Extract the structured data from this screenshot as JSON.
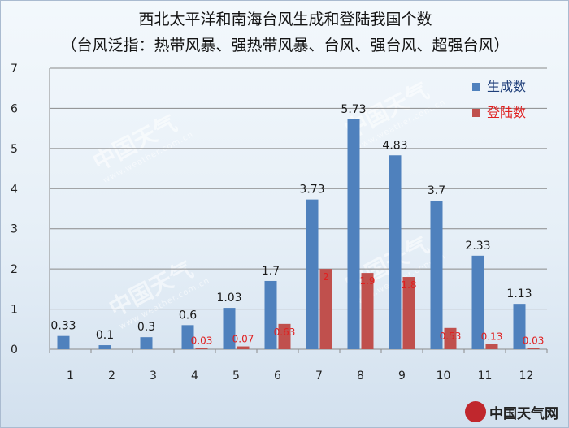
{
  "chart_data": {
    "type": "bar",
    "title_line1": "西北太平洋和南海台风生成和登陆我国个数",
    "title_line2": "（台风泛指：热带风暴、强热带风暴、台风、强台风、超强台风）",
    "categories": [
      "1",
      "2",
      "3",
      "4",
      "5",
      "6",
      "7",
      "8",
      "9",
      "10",
      "11",
      "12"
    ],
    "series": [
      {
        "name": "生成数",
        "color": "#4f81bd",
        "values": [
          0.33,
          0.1,
          0.3,
          0.6,
          1.03,
          1.7,
          3.73,
          5.73,
          4.83,
          3.7,
          2.33,
          1.13
        ],
        "labels": [
          "0.33",
          "0.1",
          "0.3",
          "0.6",
          "1.03",
          "1.7",
          "3.73",
          "5.73",
          "4.83",
          "3.7",
          "2.33",
          "1.13"
        ]
      },
      {
        "name": "登陆数",
        "color": "#c0504d",
        "values": [
          0,
          0,
          0,
          0.03,
          0.07,
          0.63,
          2,
          1.9,
          1.8,
          0.53,
          0.13,
          0.03
        ],
        "labels": [
          "",
          "",
          "",
          "0.03",
          "0.07",
          "0.63",
          "2",
          "1.9",
          "1.8",
          "0.53",
          "0.13",
          "0.03"
        ]
      }
    ],
    "yticks": [
      "0",
      "1",
      "2",
      "3",
      "4",
      "5",
      "6",
      "7"
    ],
    "ylim": [
      0,
      7
    ],
    "grid": true,
    "legend_position": "top-right",
    "label_colors": {
      "series1": "#1a1a1a",
      "series2": "#e02020"
    }
  },
  "watermark": {
    "text": "中国天气",
    "subtext": "www.weather.com.cn"
  },
  "logo": {
    "text": "中国天气网",
    "url_text": "www.weather.com.cn"
  }
}
